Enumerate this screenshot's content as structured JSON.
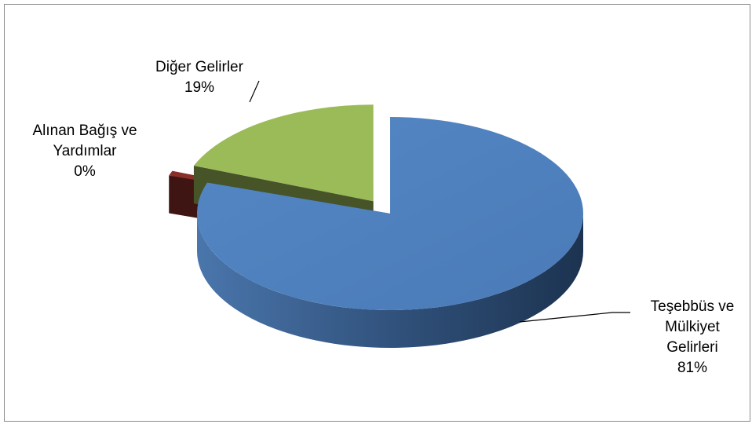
{
  "chart_data": {
    "type": "pie",
    "style": "3d-exploded",
    "title": "",
    "categories": [
      "Teşebbüs ve Mülkiyet Gelirleri",
      "Alınan Bağış ve Yardımlar",
      "Diğer Gelirler"
    ],
    "values": [
      81,
      0,
      19
    ],
    "value_format": "percent",
    "colors": [
      "#4f81bd",
      "#8b2e2a",
      "#9bbb59"
    ],
    "labels": [
      {
        "lines": [
          "Teşebbüs ve",
          "Mülkiyet",
          "Gelirleri",
          "81%"
        ]
      },
      {
        "lines": [
          "Alınan Bağış ve",
          "Yardımlar",
          "0%"
        ]
      },
      {
        "lines": [
          "Diğer Gelirler",
          "19%"
        ]
      }
    ],
    "legend": "none",
    "grid": false
  }
}
